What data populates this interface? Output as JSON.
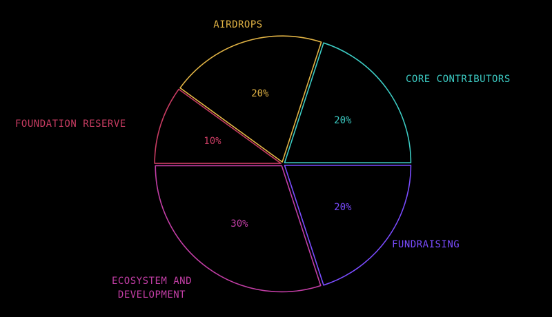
{
  "chart_data": {
    "type": "pie",
    "categories": [
      "CORE CONTRIBUTORS",
      "FUNDRAISING",
      "ECOSYSTEM AND DEVELOPMENT",
      "FOUNDATION RESERVE",
      "AIRDROPS"
    ],
    "values": [
      20,
      20,
      30,
      10,
      20
    ],
    "value_labels": [
      "20%",
      "20%",
      "30%",
      "10%",
      "20%"
    ],
    "colors": [
      "#3ccbc3",
      "#7a4cff",
      "#c33ea6",
      "#c83c62",
      "#e2b445"
    ]
  }
}
